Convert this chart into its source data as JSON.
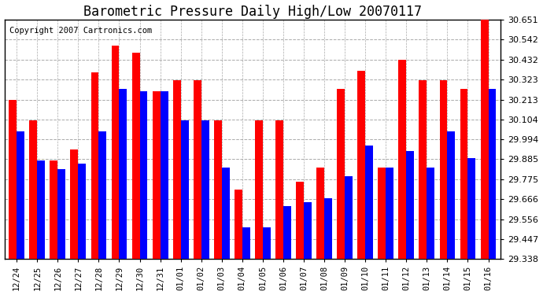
{
  "title": "Barometric Pressure Daily High/Low 20070117",
  "copyright": "Copyright 2007 Cartronics.com",
  "dates": [
    "12/24",
    "12/25",
    "12/26",
    "12/27",
    "12/28",
    "12/29",
    "12/30",
    "12/31",
    "01/01",
    "01/02",
    "01/03",
    "01/04",
    "01/05",
    "01/06",
    "01/07",
    "01/08",
    "01/09",
    "01/10",
    "01/11",
    "01/12",
    "01/13",
    "01/14",
    "01/15",
    "01/16"
  ],
  "highs": [
    30.21,
    30.1,
    29.88,
    29.94,
    30.36,
    30.51,
    30.47,
    30.26,
    30.32,
    30.32,
    30.1,
    29.72,
    30.1,
    30.1,
    29.76,
    29.84,
    30.27,
    30.37,
    29.84,
    30.43,
    30.32,
    30.32,
    30.27,
    30.65
  ],
  "lows": [
    30.04,
    29.88,
    29.83,
    29.86,
    30.04,
    30.27,
    30.26,
    30.26,
    30.1,
    30.1,
    29.84,
    29.51,
    29.51,
    29.63,
    29.65,
    29.67,
    29.79,
    29.96,
    29.84,
    29.93,
    29.84,
    30.04,
    29.89,
    30.27
  ],
  "high_color": "#ff0000",
  "low_color": "#0000ff",
  "background_color": "#ffffff",
  "grid_color": "#aaaaaa",
  "ymin": 29.338,
  "ymax": 30.651,
  "yticks": [
    29.338,
    29.447,
    29.556,
    29.666,
    29.775,
    29.885,
    29.994,
    30.104,
    30.213,
    30.323,
    30.432,
    30.542,
    30.651
  ],
  "title_fontsize": 12,
  "copyright_fontsize": 7.5,
  "bar_width": 0.38
}
